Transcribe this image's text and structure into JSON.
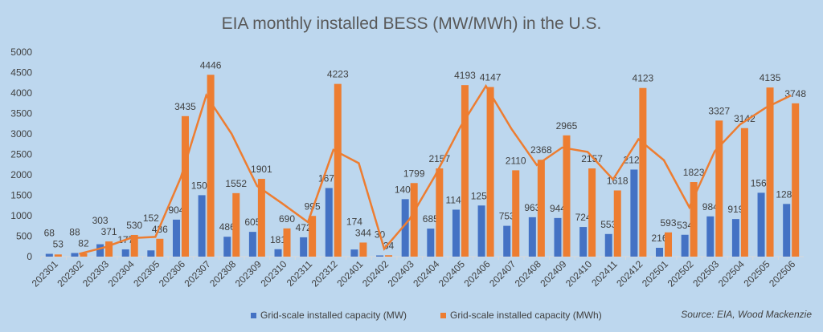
{
  "chart_data": {
    "type": "bar",
    "title": "EIA  monthly installed BESS (MW/MWh) in the U.S.",
    "categories": [
      "202301",
      "202302",
      "202303",
      "202304",
      "202305",
      "202306",
      "202307",
      "202308",
      "202309",
      "202310",
      "202311",
      "202312",
      "202401",
      "202402",
      "202403",
      "202404",
      "202405",
      "202406",
      "202407",
      "202408",
      "202409",
      "202410",
      "202411",
      "202412",
      "202501",
      "202502",
      "202503",
      "202504",
      "202505",
      "202506"
    ],
    "series": [
      {
        "name": "Grid-scale installed capacity (MW)",
        "color": "#4472c4",
        "values": [
          68,
          88,
          303,
          177,
          152,
          904,
          1502,
          486,
          605,
          181,
          472,
          1677,
          174,
          30,
          1405,
          685,
          1148,
          1250,
          753,
          963,
          944,
          724,
          553,
          2128,
          216,
          534,
          984,
          919,
          1561,
          1288
        ]
      },
      {
        "name": "Grid-scale installed capacity (MWh)",
        "color": "#ed7d31",
        "values": [
          53,
          82,
          371,
          530,
          436,
          3435,
          4446,
          1552,
          1901,
          690,
          995,
          4223,
          344,
          34,
          1799,
          2157,
          4193,
          4147,
          2110,
          2368,
          2965,
          2157,
          1618,
          4123,
          593,
          1823,
          3327,
          3142,
          4135,
          3748
        ]
      }
    ],
    "trendline": {
      "series": "Grid-scale installed capacity (MWh)",
      "type": "2-period moving average",
      "color": "#ed7d31"
    },
    "ylim": [
      0,
      5000
    ],
    "yticks": [
      0,
      500,
      1000,
      1500,
      2000,
      2500,
      3000,
      3500,
      4000,
      4500,
      5000
    ],
    "grid": false,
    "legend": "bottom",
    "xlabel": "",
    "ylabel": ""
  },
  "source": "Source: EIA, Wood Mackenzie"
}
